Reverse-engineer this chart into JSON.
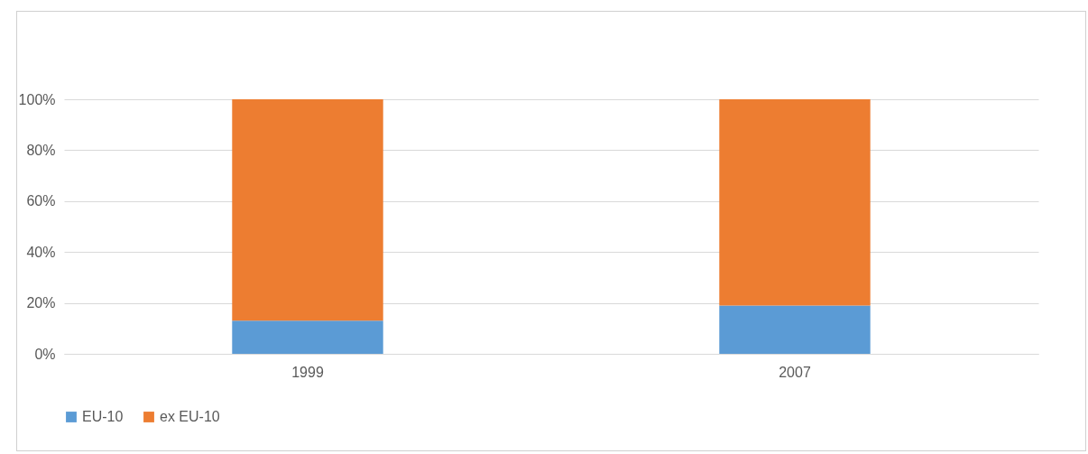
{
  "chart_data": {
    "type": "bar",
    "stacked": true,
    "categories": [
      "1999",
      "2007"
    ],
    "series": [
      {
        "name": "EU-10",
        "color": "#5b9bd5",
        "values": [
          13,
          19
        ]
      },
      {
        "name": "ex EU-10",
        "color": "#ed7d31",
        "values": [
          87,
          81
        ]
      }
    ],
    "ylim": [
      0,
      100
    ],
    "yticks": [
      {
        "value": 0,
        "label": "0%"
      },
      {
        "value": 20,
        "label": "20%"
      },
      {
        "value": 40,
        "label": "40%"
      },
      {
        "value": 60,
        "label": "60%"
      },
      {
        "value": 80,
        "label": "80%"
      },
      {
        "value": 100,
        "label": "100%"
      }
    ],
    "grid": "y",
    "legend": "bottom"
  }
}
